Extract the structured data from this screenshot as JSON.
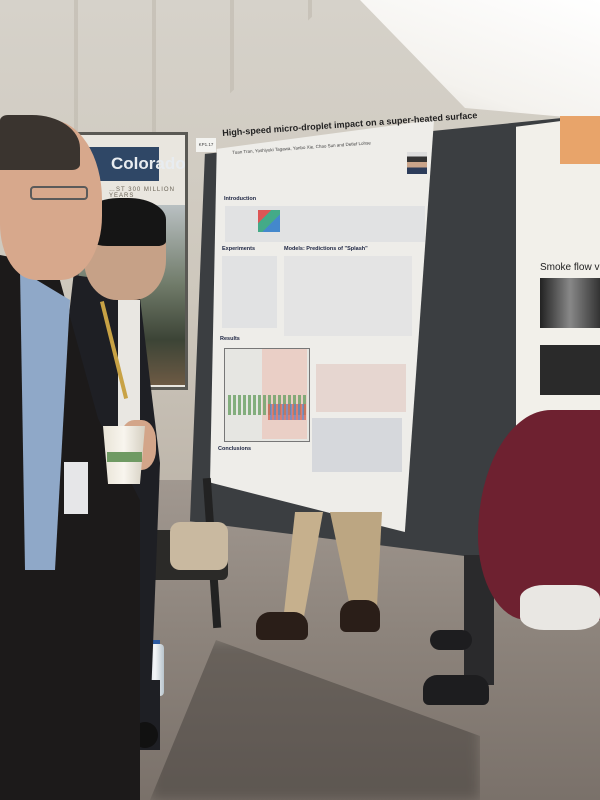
{
  "scene": {
    "colors": {
      "poster_board": "#3b3e41",
      "colorado_band": "#2f4766",
      "sleeve": "#6e2130",
      "floor": "#8c837b"
    }
  },
  "background_poster": {
    "title": "Colorado",
    "subtitle": "…ST 300 MILLION YEARS"
  },
  "main_poster": {
    "board_label": "KP1.17",
    "title": "High-speed micro-droplet impact on a super-heated surface",
    "authors": "Tuan Tran, Yoshiyuki Tagawa, Yanbo Xie, Chao Sun and Detlef Lohse",
    "sections": [
      "Introduction",
      "Experiments",
      "Models: Predictions of \"Splash\"",
      "Results",
      "Conclusions"
    ]
  },
  "right_poster": {
    "heading": "Smoke flow v"
  }
}
